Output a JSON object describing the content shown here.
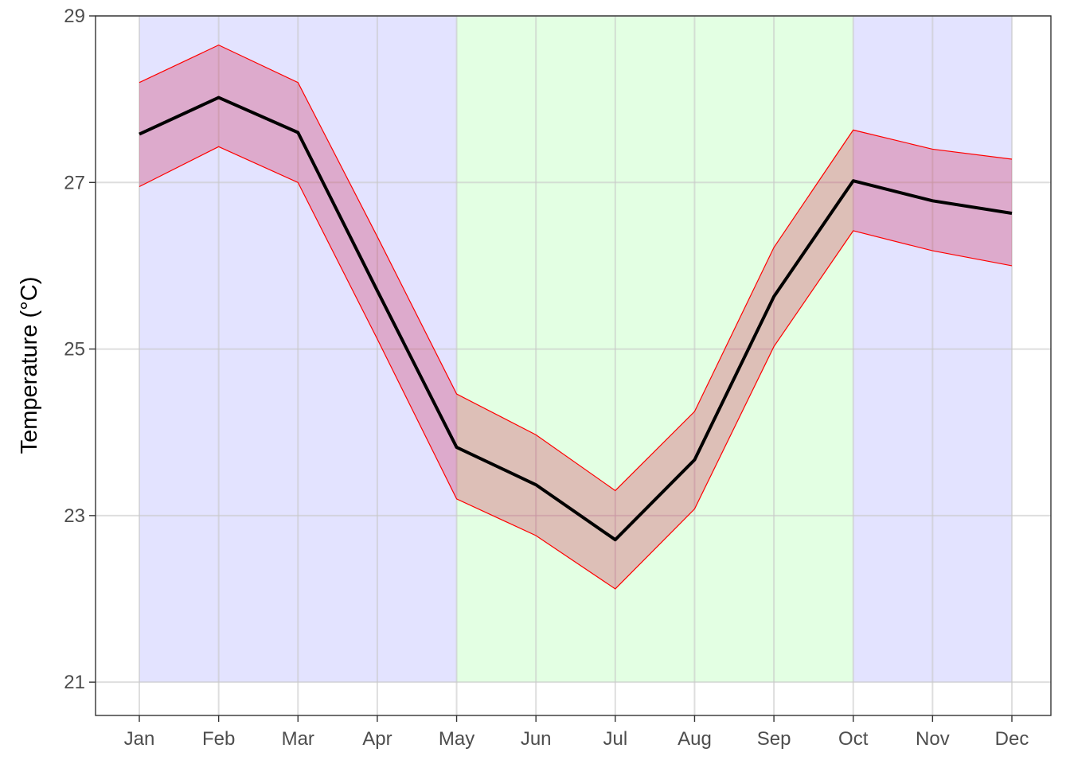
{
  "chart_data": {
    "type": "line",
    "title": "",
    "xlabel": "",
    "ylabel": "Temperature (°C)",
    "categories": [
      "Jan",
      "Feb",
      "Mar",
      "Apr",
      "May",
      "Jun",
      "Jul",
      "Aug",
      "Sep",
      "Oct",
      "Nov",
      "Dec"
    ],
    "ylim": [
      20.6,
      29
    ],
    "yticks": [
      21,
      23,
      25,
      27,
      29
    ],
    "grid": true,
    "series": [
      {
        "values": [
          27.58,
          28.02,
          27.6,
          25.7,
          23.82,
          23.37,
          22.71,
          23.67,
          25.63,
          27.02,
          26.78,
          26.63
        ],
        "lower": [
          26.95,
          27.43,
          27.0,
          25.12,
          23.2,
          22.76,
          22.12,
          23.08,
          25.03,
          26.42,
          26.18,
          26.0
        ],
        "upper": [
          28.2,
          28.65,
          28.2,
          26.35,
          24.46,
          23.97,
          23.3,
          24.25,
          26.22,
          27.63,
          27.4,
          27.28
        ],
        "line_color": "#000000",
        "ribbon_edge_color": "#ff0000",
        "ribbon_fill_color": "#cc0033"
      }
    ],
    "background_bands": [
      {
        "from": "Jan",
        "to": "May",
        "color": "#8080ff"
      },
      {
        "from": "May",
        "to": "Oct",
        "color": "#80ff80"
      },
      {
        "from": "Oct",
        "to": "Dec",
        "color": "#8080ff"
      }
    ],
    "band_ymin": 21,
    "band_ymax": 29
  }
}
